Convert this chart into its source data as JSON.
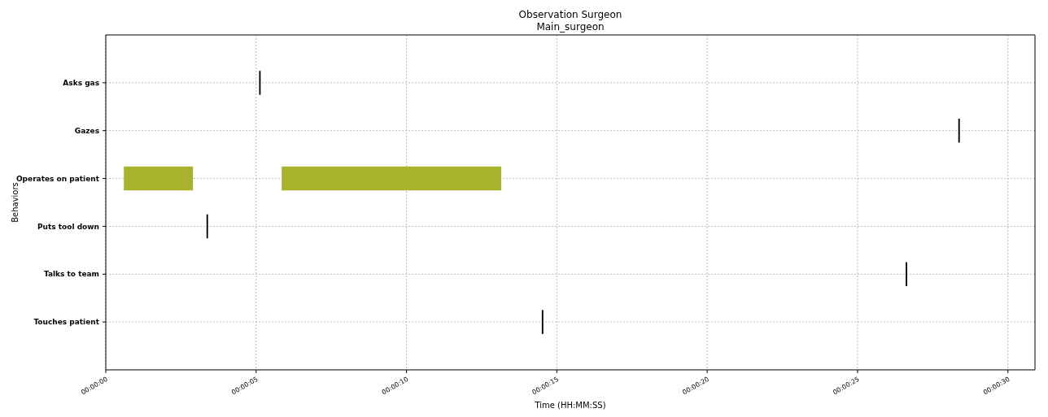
{
  "chart_data": {
    "type": "bar",
    "orientation": "horizontal",
    "title": "Observation Surgeon",
    "subtitle": "Main_surgeon",
    "xlabel": "Time (HH:MM:SS)",
    "ylabel": "Behaviors",
    "categories": [
      "Asks gas",
      "Gazes",
      "Operates on patient",
      "Puts tool down",
      "Talks to team",
      "Touches patient"
    ],
    "series": [
      {
        "color": "#a8b22c",
        "base": [
          null,
          null,
          0.6,
          null,
          null,
          null
        ],
        "values": [
          null,
          null,
          2.3,
          null,
          null,
          null
        ]
      },
      {
        "color": "#a8b22c",
        "base": [
          null,
          null,
          5.85,
          null,
          null,
          null
        ],
        "values": [
          null,
          null,
          7.3,
          null,
          null,
          null
        ]
      },
      {
        "color": "#000000",
        "base": [
          5.1,
          28.35,
          null,
          3.35,
          26.6,
          14.5
        ],
        "values": [
          0.05,
          0.05,
          null,
          0.05,
          0.05,
          0.05
        ]
      }
    ],
    "xlim": [
      0,
      30.9
    ],
    "xticks": [
      {
        "value": 0,
        "label": "00:00:00"
      },
      {
        "value": 5,
        "label": "00:00:05"
      },
      {
        "value": 10,
        "label": "00:00:10"
      },
      {
        "value": 15,
        "label": "00:00:15"
      },
      {
        "value": 20,
        "label": "00:00:20"
      },
      {
        "value": 25,
        "label": "00:00:25"
      },
      {
        "value": 30,
        "label": "00:00:30"
      }
    ],
    "grid": true
  }
}
